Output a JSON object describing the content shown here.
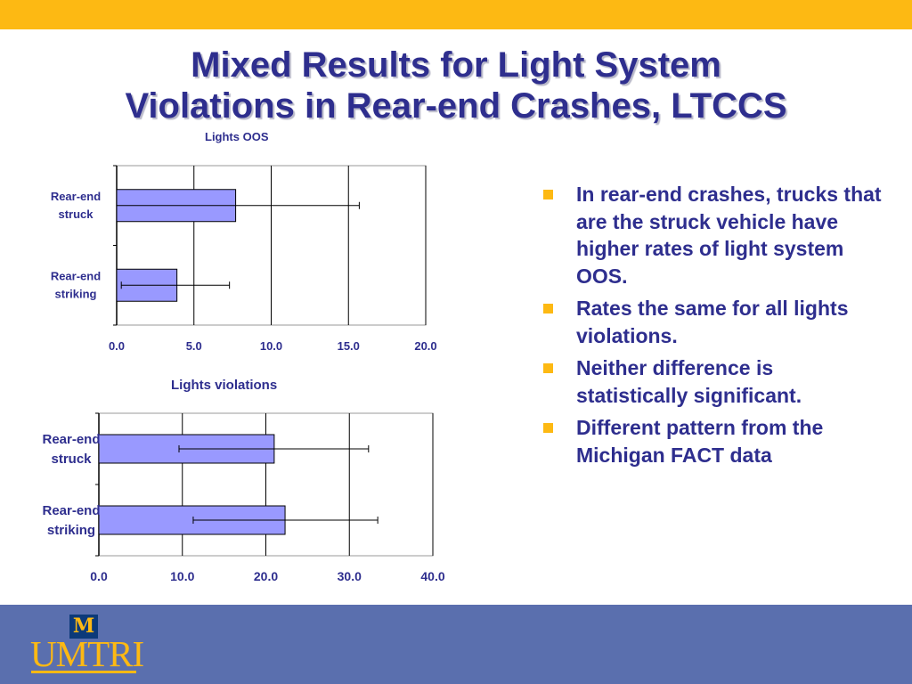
{
  "title_line1": "Mixed Results for Light System",
  "title_line2": "Violations in Rear-end Crashes, LTCCS",
  "chart_data": [
    {
      "type": "bar",
      "orientation": "horizontal",
      "title": "Lights OOS",
      "categories": [
        "Rear-end struck",
        "Rear-end striking"
      ],
      "category_lines": [
        [
          "Rear-end",
          "struck"
        ],
        [
          "Rear-end",
          "striking"
        ]
      ],
      "values": [
        7.7,
        3.9
      ],
      "error_low": [
        0.0,
        0.3
      ],
      "error_high": [
        15.7,
        7.3
      ],
      "xlim": [
        0,
        20
      ],
      "ticks": [
        0,
        5,
        10,
        15,
        20
      ],
      "tick_labels": [
        "0.0",
        "5.0",
        "10.0",
        "15.0",
        "20.0"
      ],
      "grid": true
    },
    {
      "type": "bar",
      "orientation": "horizontal",
      "title": "Lights violations",
      "categories": [
        "Rear-end struck",
        "Rear-end striking"
      ],
      "category_lines": [
        [
          "Rear-end",
          "struck"
        ],
        [
          "Rear-end",
          "striking"
        ]
      ],
      "values": [
        21.0,
        22.3
      ],
      "error_low": [
        9.6,
        11.3
      ],
      "error_high": [
        32.3,
        33.4
      ],
      "xlim": [
        0,
        40
      ],
      "ticks": [
        0,
        10,
        20,
        30,
        40
      ],
      "tick_labels": [
        "0.0",
        "10.0",
        "20.0",
        "30.0",
        "40.0"
      ],
      "grid": true
    }
  ],
  "bullets": [
    "In rear-end crashes, trucks that are the struck vehicle have higher rates of light system OOS.",
    "Rates the same for all lights violations.",
    "Neither difference is statistically significant.",
    "Different pattern from the Michigan FACT data"
  ],
  "logo": {
    "mark": "M",
    "text": "UMTRI"
  },
  "colors": {
    "accent": "#FDB913",
    "text": "#2E2E8E",
    "bar": "#9999FF",
    "footer": "#5A6FAE"
  }
}
